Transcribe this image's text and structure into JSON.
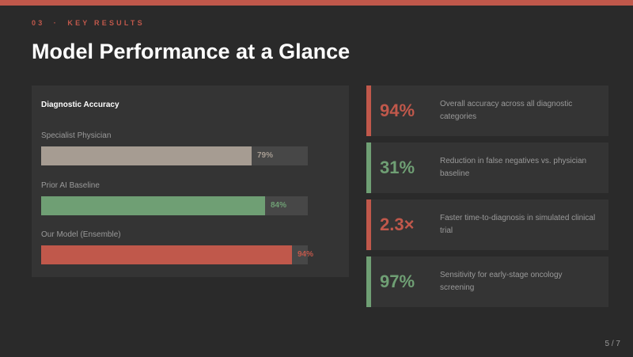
{
  "colors": {
    "accent_red": "#c0584b",
    "accent_green": "#6f9f74",
    "neutral_bar": "#a69c92",
    "background": "#2a2a2a",
    "panel": "#343434"
  },
  "header": {
    "eyebrow": "03  ·  KEY RESULTS",
    "title": "Model Performance at a Glance"
  },
  "chart": {
    "title": "Diagnostic Accuracy",
    "bars": [
      {
        "label": "Specialist Physician",
        "value": 79,
        "value_label": "79%",
        "color": "#a69c92",
        "value_color": "#a69c92"
      },
      {
        "label": "Prior AI Baseline",
        "value": 84,
        "value_label": "84%",
        "color": "#6f9f74",
        "value_color": "#6f9f74"
      },
      {
        "label": "Our Model (Ensemble)",
        "value": 94,
        "value_label": "94%",
        "color": "#c0584b",
        "value_color": "#c0584b"
      }
    ]
  },
  "stats": [
    {
      "value": "94%",
      "desc": "Overall accuracy across all diagnostic categories",
      "color": "#c0584b"
    },
    {
      "value": "31%",
      "desc": "Reduction in false negatives vs. physician baseline",
      "color": "#6f9f74"
    },
    {
      "value": "2.3×",
      "desc": "Faster time-to-diagnosis in simulated clinical trial",
      "color": "#c0584b"
    },
    {
      "value": "97%",
      "desc": "Sensitivity for early-stage oncology screening",
      "color": "#6f9f74"
    }
  ],
  "footer": {
    "page": "5 / 7"
  }
}
